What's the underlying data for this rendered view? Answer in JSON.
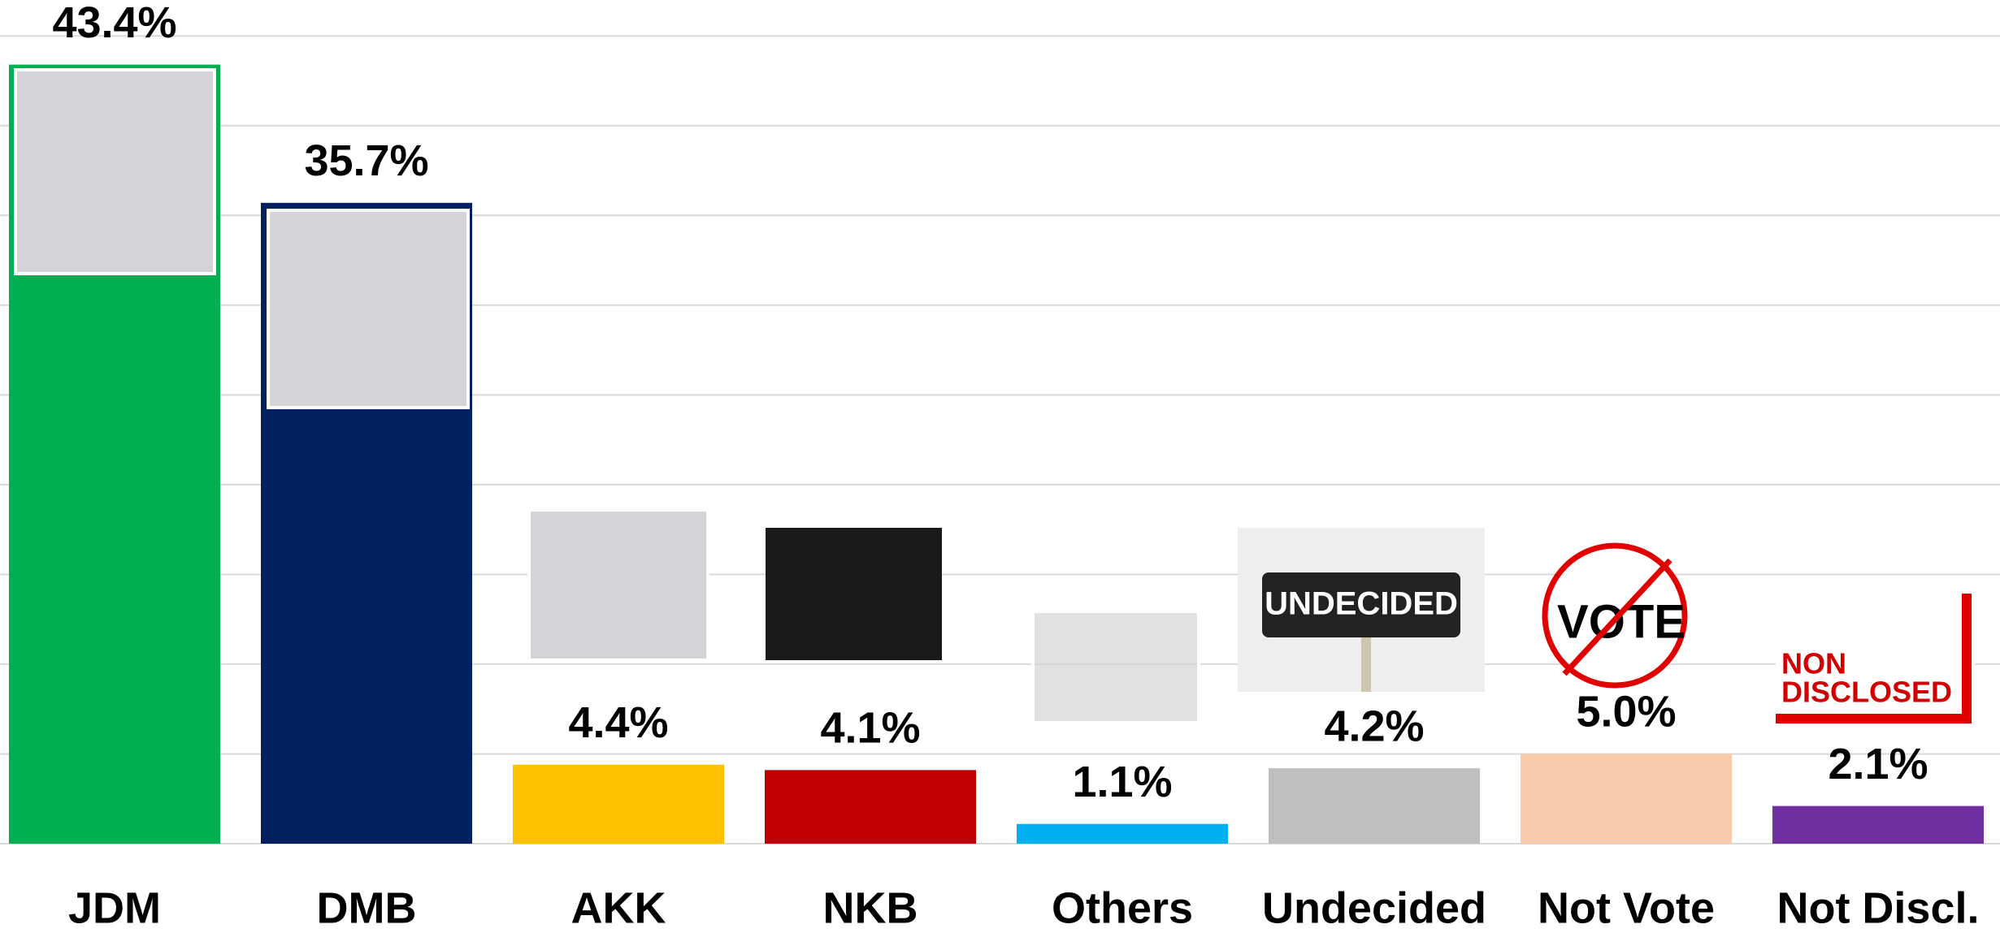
{
  "chart_data": {
    "type": "bar",
    "categories": [
      "JDM",
      "DMB",
      "AKK",
      "NKB",
      "Others",
      "Undecided",
      "Not Vote",
      "Not Discl."
    ],
    "values": [
      43.4,
      35.7,
      4.4,
      4.1,
      1.1,
      4.2,
      5.0,
      2.1
    ],
    "value_labels": [
      "43.4%",
      "35.7%",
      "4.4%",
      "4.1%",
      "1.1%",
      "4.2%",
      "5.0%",
      "2.1%"
    ],
    "colors": [
      "#00b050",
      "#002060",
      "#ffc000",
      "#c00000",
      "#00b0f0",
      "#bfbfbf",
      "#f8cbad",
      "#7030a0"
    ],
    "ylim": [
      0,
      47
    ],
    "yticks": [
      0,
      5,
      10,
      15,
      20,
      25,
      30,
      35,
      40,
      45
    ],
    "grid": true,
    "annotations": [
      "UNDECIDED",
      "VOTE",
      "NON",
      "DISCLOSED"
    ]
  }
}
